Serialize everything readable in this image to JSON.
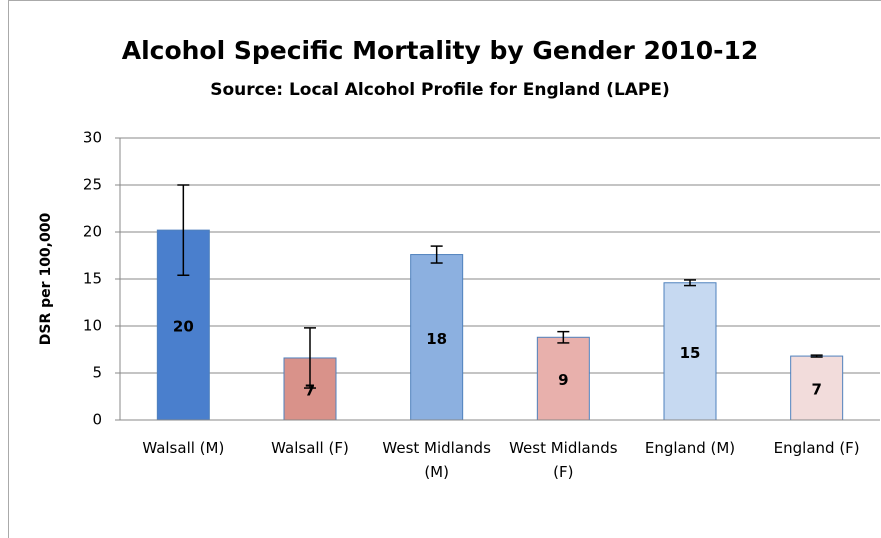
{
  "chart_data": {
    "type": "bar",
    "title": "Alcohol Specific Mortality by Gender 2010-12",
    "subtitle": "Source: Local Alcohol Profile for England (LAPE)",
    "y_label": "DSR per 100,000",
    "categories": [
      "Walsall (M)",
      "Walsall (F)",
      "West Midlands (M)",
      "West Midlands (F)",
      "England (M)",
      "England (F)"
    ],
    "values": [
      20.2,
      6.6,
      17.6,
      8.8,
      14.6,
      6.8
    ],
    "value_labels": [
      "20",
      "7",
      "18",
      "9",
      "15",
      "7"
    ],
    "errors": [
      4.8,
      3.2,
      0.9,
      0.6,
      0.3,
      0.1
    ],
    "colors": [
      "#4a7fcd",
      "#d9928a",
      "#8cb0e0",
      "#e8b0ac",
      "#c6d9f1",
      "#f2dcdb"
    ],
    "ylim": [
      0,
      30
    ],
    "yticks": [
      0,
      5,
      10,
      15,
      20,
      25,
      30
    ],
    "grid": true
  }
}
